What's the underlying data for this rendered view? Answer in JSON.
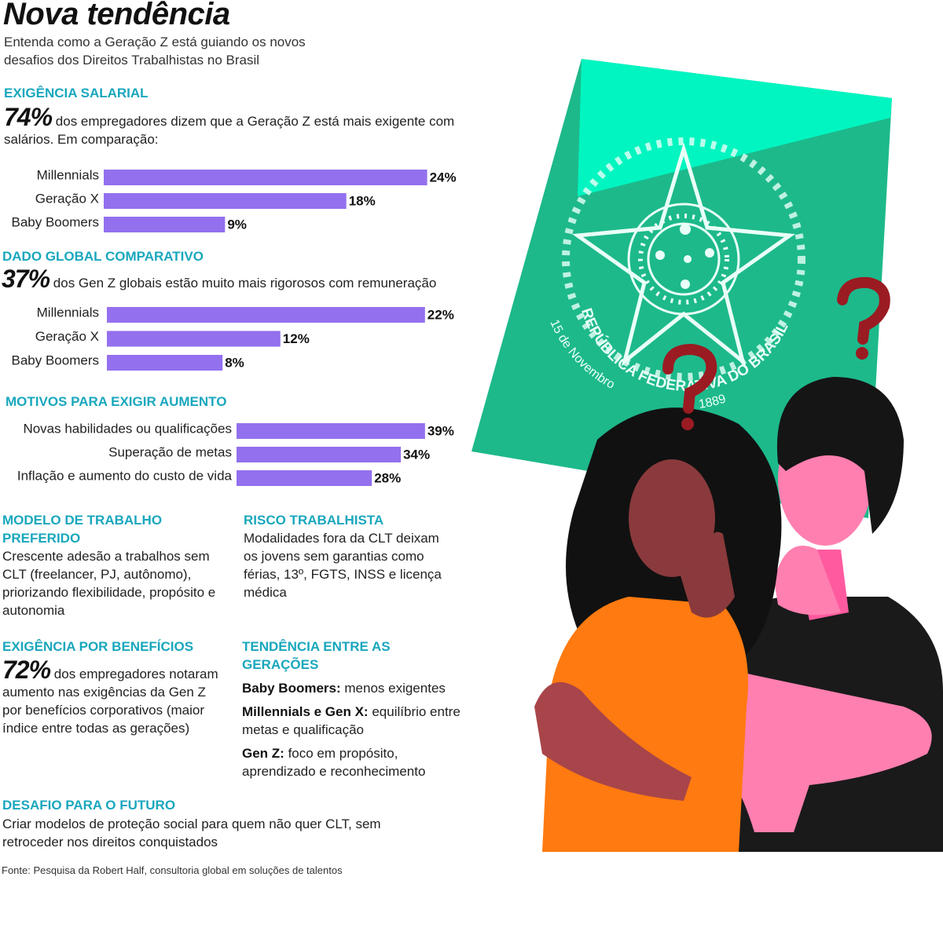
{
  "header": {
    "title": "Nova tendência",
    "subtitle": "Entenda como a Geração Z está guiando os novos desafios dos Direitos Trabalhistas no Brasil"
  },
  "sections": {
    "salary": {
      "heading": "EXIGÊNCIA SALARIAL",
      "stat": "74%",
      "text": "dos empregadores dizem que a Geração Z está mais exigente com salários. Em comparação:"
    },
    "global": {
      "heading": "DADO GLOBAL COMPARATIVO",
      "stat": "37%",
      "text": "dos Gen Z globais estão muito mais rigorosos com remuneração"
    },
    "reasons": {
      "heading": "MOTIVOS PARA EXIGIR AUMENTO"
    },
    "work_model": {
      "heading": "MODELO DE TRABALHO PREFERIDO",
      "text": "Crescente adesão a trabalhos sem CLT (freelancer, PJ, autônomo), priorizando flexibilidade, propósito e autonomia"
    },
    "risk": {
      "heading": "RISCO TRABALHISTA",
      "text": "Modalidades fora da CLT deixam os jovens sem garantias como férias, 13º, FGTS, INSS e licença médica"
    },
    "benefits": {
      "heading": "EXIGÊNCIA POR BENEFÍCIOS",
      "stat": "72%",
      "text": "dos empregadores notaram aumento nas exigências da Gen Z por benefícios corporativos (maior índice entre todas as gerações)"
    },
    "trend": {
      "heading": "TENDÊNCIA ENTRE AS GERAÇÕES",
      "items": [
        {
          "label": "Baby Boomers:",
          "text": "menos exigentes"
        },
        {
          "label": "Millennials e Gen X:",
          "text": "equilíbrio entre metas e qualificação"
        },
        {
          "label": "Gen Z:",
          "text": "foco em propósito, aprendizado e reconhecimento"
        }
      ]
    },
    "future": {
      "heading": "DESAFIO PARA O FUTURO",
      "text": "Criar modelos de proteção social para quem não quer CLT, sem retroceder nos direitos conquistados"
    }
  },
  "chart_data": [
    {
      "type": "bar",
      "categories": [
        "Millennials",
        "Geração X",
        "Baby Boomers"
      ],
      "values": [
        24,
        18,
        9
      ],
      "value_labels": [
        "24%",
        "18%",
        "9%"
      ],
      "color": "#9370ee"
    },
    {
      "type": "bar",
      "categories": [
        "Millennials",
        "Geração X",
        "Baby Boomers"
      ],
      "values": [
        22,
        12,
        8
      ],
      "value_labels": [
        "22%",
        "12%",
        "8%"
      ],
      "color": "#9370ee"
    },
    {
      "type": "bar",
      "categories": [
        "Novas habilidades ou qualificações",
        "Superação de metas",
        "Inflação e aumento do custo de vida"
      ],
      "values": [
        39,
        34,
        28
      ],
      "value_labels": [
        "39%",
        "34%",
        "28%"
      ],
      "color": "#9370ee"
    }
  ],
  "illustration": {
    "ring_text": "REPÚBLICA FEDERATIVA DO BRASIL",
    "date": "15 de Novembro",
    "year": "1889"
  },
  "source": "Fonte: Pesquisa da Robert Half, consultoria global em soluções de talentos"
}
